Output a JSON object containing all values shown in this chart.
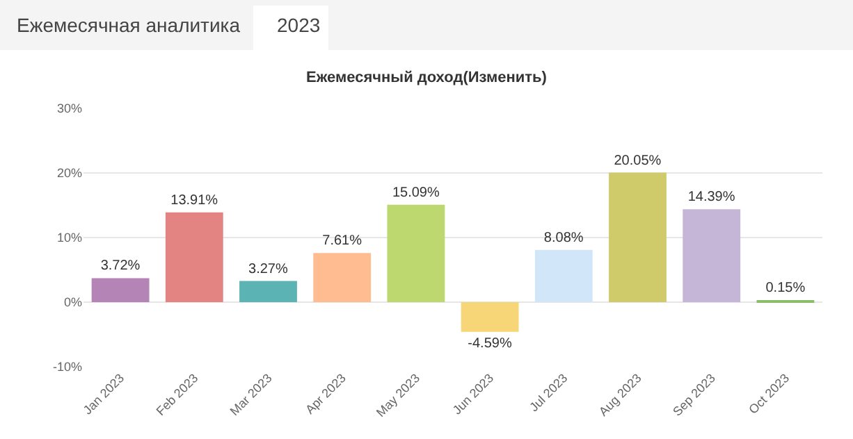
{
  "chart_data": {
    "type": "bar",
    "title": "Ежемесячный доход(Изменить)",
    "annotations": [
      "Ежемесячная аналитика",
      "2023"
    ],
    "categories": [
      "Jan 2023",
      "Feb 2023",
      "Mar 2023",
      "Apr 2023",
      "May 2023",
      "Jun 2023",
      "Jul 2023",
      "Aug 2023",
      "Sep 2023",
      "Oct 2023"
    ],
    "values": [
      3.72,
      13.91,
      3.27,
      7.61,
      15.09,
      -4.59,
      8.08,
      20.05,
      14.39,
      0.15
    ],
    "value_labels": [
      "3.72%",
      "13.91%",
      "3.27%",
      "7.61%",
      "15.09%",
      "-4.59%",
      "8.08%",
      "20.05%",
      "14.39%",
      "0.15%"
    ],
    "colors": [
      "#b384b5",
      "#e38482",
      "#5bb3b3",
      "#ffbc91",
      "#bdd86e",
      "#f6d677",
      "#d1e6f8",
      "#d0cb6a",
      "#c5b5d7",
      "#8bbd6a"
    ],
    "ylim": [
      -10,
      30
    ],
    "yticks": [
      {
        "value": -10,
        "label": "-10%"
      },
      {
        "value": 0,
        "label": "0%"
      },
      {
        "value": 10,
        "label": "10%"
      },
      {
        "value": 20,
        "label": "20%"
      },
      {
        "value": 30,
        "label": "30%"
      }
    ],
    "grid": "y"
  }
}
